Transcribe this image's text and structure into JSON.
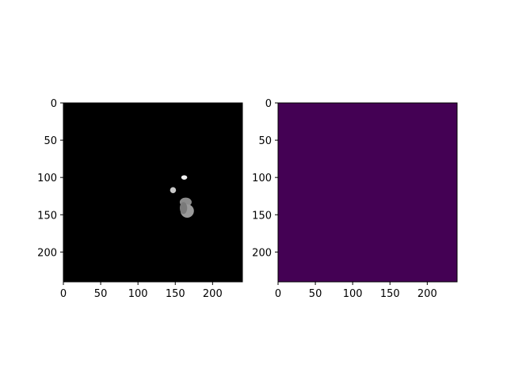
{
  "figure": {
    "background": "#ffffff"
  },
  "chart_data": [
    {
      "type": "heatmap",
      "description_colormap": "gray",
      "image_size": [
        240,
        240
      ],
      "xlim": [
        0,
        240
      ],
      "ylim": [
        240,
        0
      ],
      "xticks": [
        0,
        50,
        100,
        150,
        200
      ],
      "yticks": [
        0,
        50,
        100,
        150,
        200
      ],
      "xtick_labels": [
        "0",
        "50",
        "100",
        "150",
        "200"
      ],
      "ytick_labels": [
        "0",
        "50",
        "100",
        "150",
        "200"
      ],
      "background_color": "#000000",
      "title": "",
      "xlabel": "",
      "ylabel": "",
      "grid": false,
      "blobs": [
        {
          "cx": 162,
          "cy": 100,
          "rx": 4,
          "ry": 3,
          "color": "#f2f2f2"
        },
        {
          "cx": 147,
          "cy": 117,
          "rx": 4,
          "ry": 4,
          "color": "#c8c8c8"
        },
        {
          "cx": 164,
          "cy": 133,
          "rx": 8,
          "ry": 6,
          "color": "#8c8c8c"
        },
        {
          "cx": 166,
          "cy": 145,
          "rx": 9,
          "ry": 9,
          "color": "#9a9a9a"
        },
        {
          "cx": 161,
          "cy": 141,
          "rx": 5,
          "ry": 8,
          "color": "#7a7a7a"
        }
      ]
    },
    {
      "type": "heatmap",
      "description_colormap": "viridis",
      "image_size": [
        240,
        240
      ],
      "xlim": [
        0,
        240
      ],
      "ylim": [
        240,
        0
      ],
      "xticks": [
        0,
        50,
        100,
        150,
        200
      ],
      "yticks": [
        0,
        50,
        100,
        150,
        200
      ],
      "xtick_labels": [
        "0",
        "50",
        "100",
        "150",
        "200"
      ],
      "ytick_labels": [
        "0",
        "50",
        "100",
        "150",
        "200"
      ],
      "background_color": "#440154",
      "title": "",
      "xlabel": "",
      "ylabel": "",
      "grid": false,
      "blobs": []
    }
  ]
}
